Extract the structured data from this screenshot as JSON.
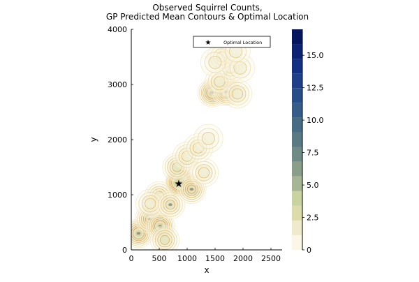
{
  "chart_data": {
    "type": "contour",
    "title_line1": "Observed Squirrel Counts,",
    "title_line2": "GP Predicted Mean Contours & Optimal Location",
    "xlabel": "x",
    "ylabel": "y",
    "xlim": [
      0,
      2700
    ],
    "ylim": [
      0,
      4000
    ],
    "x_ticks": [
      0,
      500,
      1000,
      1500,
      2000,
      2500
    ],
    "y_ticks": [
      0,
      1000,
      2000,
      3000,
      4000
    ],
    "colorbar": {
      "range": [
        0,
        17
      ],
      "ticks": [
        0,
        2.5,
        5.0,
        7.5,
        10.0,
        12.5,
        15.0
      ],
      "tick_labels": [
        "0",
        "2.5",
        "5.0",
        "7.5",
        "10.0",
        "12.5",
        "15.0"
      ],
      "colors": [
        "#fbf6e6",
        "#eeeacb",
        "#dcdcaa",
        "#c9d3a0",
        "#a6b594",
        "#8a9f8a",
        "#6f8b86",
        "#587b83",
        "#466d84",
        "#355d88",
        "#284e8a",
        "#1d4088",
        "#133182",
        "#0c2272",
        "#06165c"
      ],
      "level_line_colors": [
        "#f3e9c7",
        "#e8d7a0",
        "#e1c47c",
        "#e0b562",
        "#dda65a",
        "#d89762"
      ]
    },
    "optimal_location": {
      "label": "Optimal Location",
      "x": 850,
      "y": 1200
    },
    "legend": {
      "position": "top-right",
      "entries": [
        "Optimal Location"
      ]
    },
    "hotspots": [
      {
        "x": 130,
        "y": 300,
        "peak": 4.5
      },
      {
        "x": 330,
        "y": 560,
        "peak": 3.8
      },
      {
        "x": 520,
        "y": 430,
        "peak": 4.2
      },
      {
        "x": 600,
        "y": 180,
        "peak": 3.2
      },
      {
        "x": 500,
        "y": 980,
        "peak": 3.0
      },
      {
        "x": 340,
        "y": 840,
        "peak": 2.6
      },
      {
        "x": 700,
        "y": 820,
        "peak": 3.4
      },
      {
        "x": 870,
        "y": 1230,
        "peak": 6.0
      },
      {
        "x": 1080,
        "y": 1100,
        "peak": 3.6
      },
      {
        "x": 820,
        "y": 1500,
        "peak": 3.2
      },
      {
        "x": 1000,
        "y": 1700,
        "peak": 2.8
      },
      {
        "x": 1300,
        "y": 1400,
        "peak": 2.5
      },
      {
        "x": 1200,
        "y": 1850,
        "peak": 2.3
      },
      {
        "x": 1380,
        "y": 2020,
        "peak": 2.0
      },
      {
        "x": 1450,
        "y": 2850,
        "peak": 4.2
      },
      {
        "x": 1700,
        "y": 2870,
        "peak": 4.6
      },
      {
        "x": 1580,
        "y": 3050,
        "peak": 2.6
      },
      {
        "x": 1900,
        "y": 2830,
        "peak": 2.8
      },
      {
        "x": 1780,
        "y": 3300,
        "peak": 2.5
      },
      {
        "x": 1620,
        "y": 3500,
        "peak": 2.4
      },
      {
        "x": 1950,
        "y": 3300,
        "peak": 2.0
      },
      {
        "x": 1500,
        "y": 3400,
        "peak": 1.8
      },
      {
        "x": 1870,
        "y": 3600,
        "peak": 1.8
      }
    ]
  }
}
